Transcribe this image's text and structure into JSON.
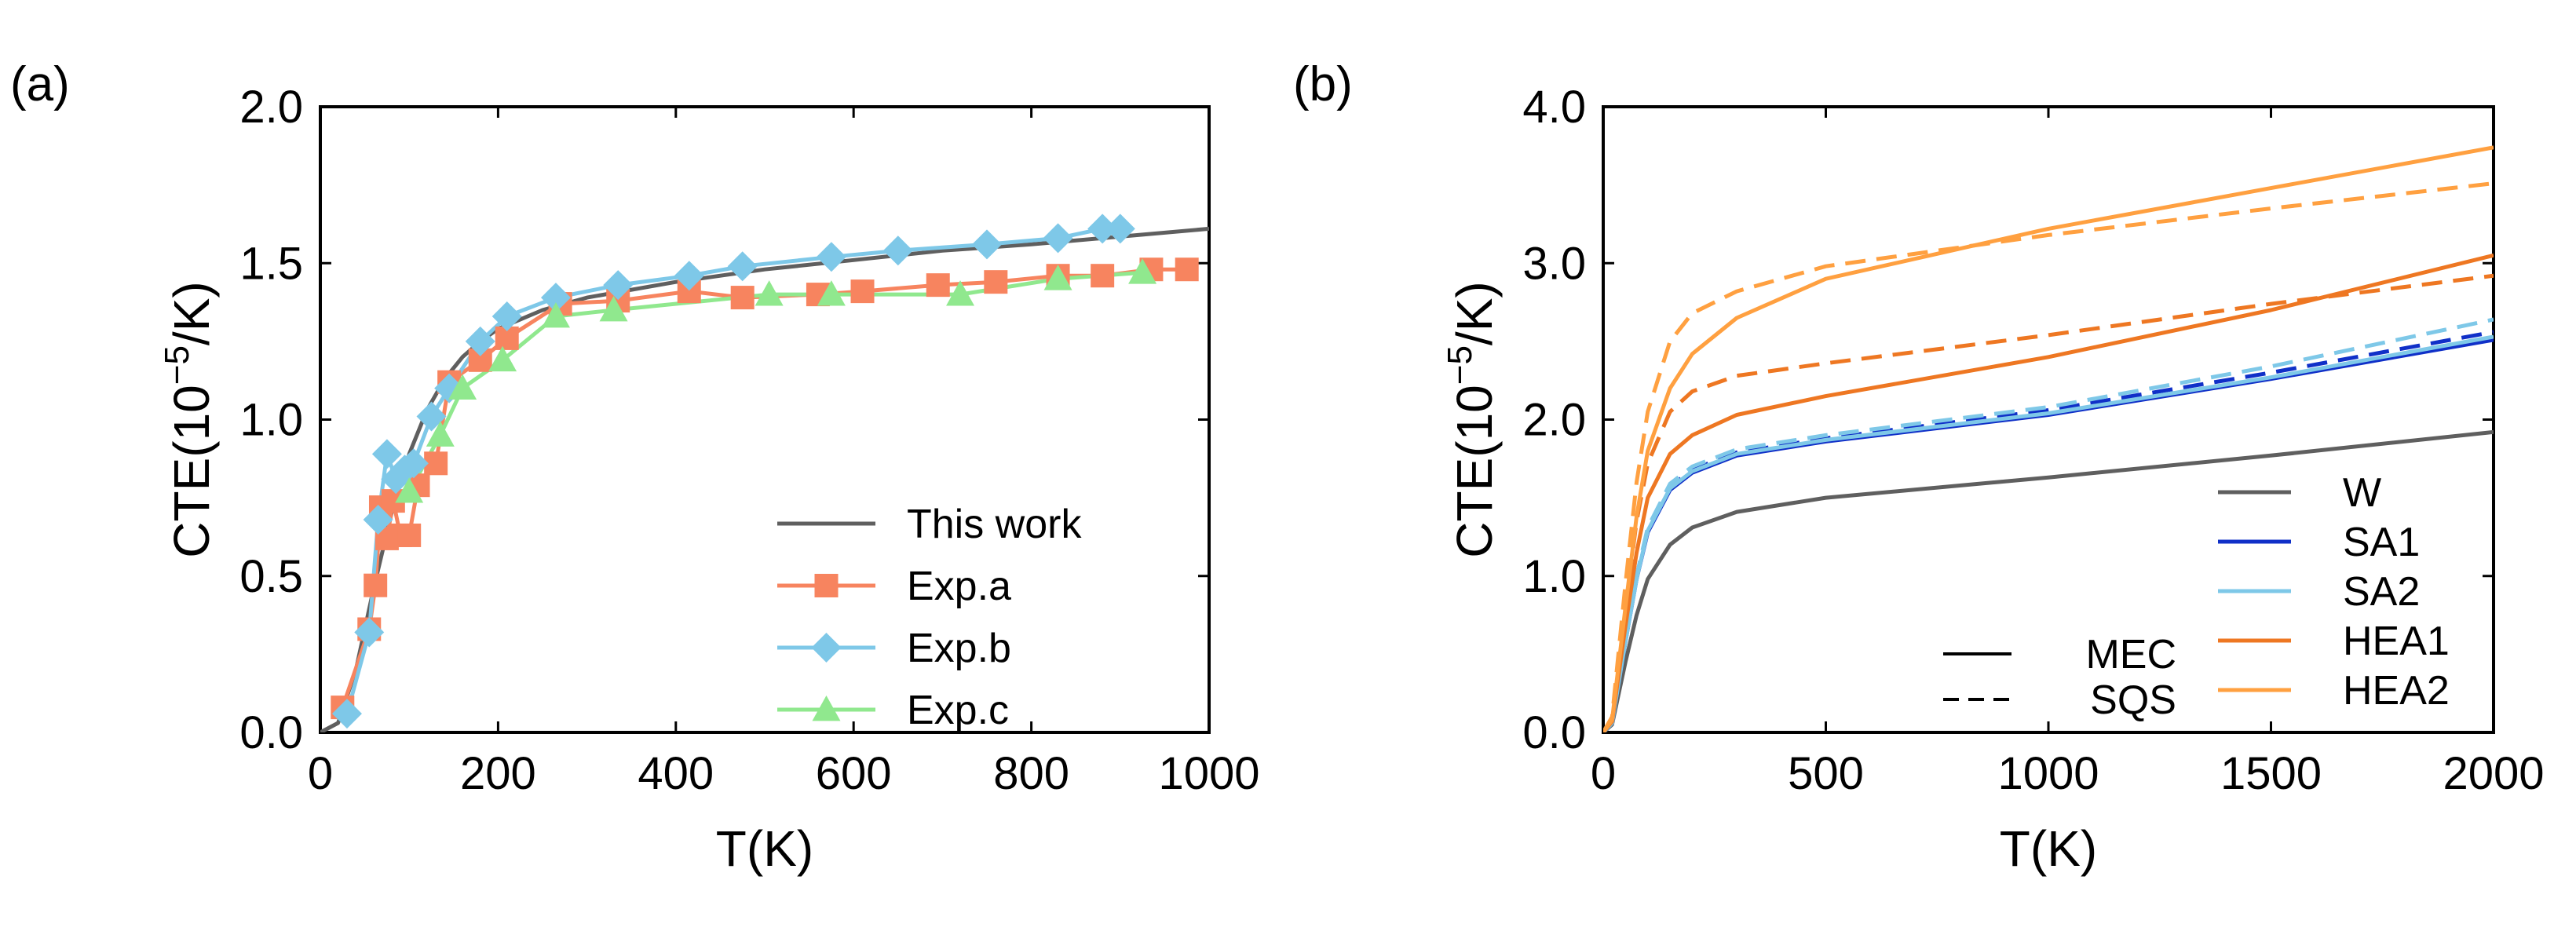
{
  "chart_data": [
    {
      "type": "line",
      "panel_label": "(a)",
      "xlabel": "T(K)",
      "ylabel": {
        "base": "CTE(10",
        "exp": "−5",
        "unit": "/K)"
      },
      "xlim": [
        0,
        1000
      ],
      "ylim": [
        0,
        2
      ],
      "xticks": [
        "0",
        "200",
        "400",
        "600",
        "800",
        "1000"
      ],
      "yticks": [
        "0.0",
        "0.5",
        "1.0",
        "1.5",
        "2.0"
      ],
      "legend_position": "bottom-right",
      "series": [
        {
          "name": "This work",
          "color": "#5f5f5f",
          "dash": "solid",
          "marker": "none",
          "x": [
            0,
            20,
            40,
            60,
            80,
            100,
            120,
            140,
            160,
            180,
            200,
            250,
            300,
            400,
            500,
            600,
            700,
            800,
            900,
            1000
          ],
          "y": [
            0,
            0.03,
            0.2,
            0.46,
            0.7,
            0.89,
            1.03,
            1.13,
            1.2,
            1.25,
            1.29,
            1.35,
            1.39,
            1.44,
            1.48,
            1.51,
            1.54,
            1.56,
            1.585,
            1.61
          ]
        },
        {
          "name": "Exp.a",
          "color": "#f7845f",
          "dash": "solid",
          "marker": "square",
          "x": [
            25,
            55,
            62,
            68,
            75,
            82,
            90,
            100,
            110,
            130,
            145,
            180,
            210,
            270,
            335,
            415,
            475,
            560,
            610,
            695,
            760,
            830,
            880,
            935,
            975
          ],
          "y": [
            0.08,
            0.33,
            0.47,
            0.72,
            0.62,
            0.74,
            0.63,
            0.63,
            0.79,
            0.86,
            1.12,
            1.19,
            1.26,
            1.37,
            1.38,
            1.41,
            1.39,
            1.4,
            1.41,
            1.43,
            1.44,
            1.46,
            1.46,
            1.48,
            1.48
          ]
        },
        {
          "name": "Exp.b",
          "color": "#7ec8e8",
          "dash": "solid",
          "marker": "diamond",
          "x": [
            30,
            55,
            65,
            75,
            85,
            95,
            105,
            125,
            145,
            180,
            210,
            265,
            335,
            415,
            475,
            575,
            650,
            750,
            830,
            880,
            900
          ],
          "y": [
            0.06,
            0.32,
            0.68,
            0.89,
            0.81,
            0.84,
            0.86,
            1.01,
            1.1,
            1.25,
            1.33,
            1.39,
            1.43,
            1.46,
            1.49,
            1.52,
            1.54,
            1.56,
            1.58,
            1.61,
            1.61
          ]
        },
        {
          "name": "Exp.c",
          "color": "#90e88e",
          "dash": "solid",
          "marker": "triangle",
          "x": [
            100,
            135,
            160,
            205,
            265,
            330,
            505,
            575,
            720,
            830,
            925
          ],
          "y": [
            0.77,
            0.95,
            1.1,
            1.19,
            1.33,
            1.35,
            1.4,
            1.4,
            1.4,
            1.45,
            1.47
          ]
        }
      ]
    },
    {
      "type": "line",
      "panel_label": "(b)",
      "xlabel": "T(K)",
      "ylabel": {
        "base": "CTE(10",
        "exp": "−5",
        "unit": "/K)"
      },
      "xlim": [
        0,
        2000
      ],
      "ylim": [
        0,
        4
      ],
      "xticks": [
        "0",
        "500",
        "1000",
        "1500",
        "2000"
      ],
      "yticks": [
        "0.0",
        "1.0",
        "2.0",
        "3.0",
        "4.0"
      ],
      "legend_position": "bottom-right",
      "style_legend": [
        {
          "name": "MEC",
          "dash": "solid"
        },
        {
          "name": "SQS",
          "dash": "dashed"
        }
      ],
      "series": [
        {
          "name": "W",
          "method": "MEC",
          "color": "#5f5f5f",
          "dash": "solid",
          "x": [
            0,
            20,
            50,
            75,
            100,
            150,
            200,
            300,
            500,
            1000,
            1500,
            2000
          ],
          "y": [
            0,
            0.05,
            0.45,
            0.75,
            0.98,
            1.2,
            1.31,
            1.41,
            1.5,
            1.63,
            1.77,
            1.92
          ]
        },
        {
          "name": "SA1",
          "method": "MEC",
          "color": "#1030c8",
          "dash": "solid",
          "x": [
            0,
            20,
            50,
            75,
            100,
            150,
            200,
            300,
            500,
            1000,
            1500,
            2000
          ],
          "y": [
            0,
            0.06,
            0.58,
            0.98,
            1.28,
            1.55,
            1.66,
            1.77,
            1.86,
            2.03,
            2.26,
            2.51
          ]
        },
        {
          "name": "SA1",
          "method": "SQS",
          "color": "#1030c8",
          "dash": "dashed",
          "x": [
            0,
            20,
            50,
            75,
            100,
            150,
            200,
            300,
            500,
            1000,
            1500,
            2000
          ],
          "y": [
            0,
            0.06,
            0.6,
            1.0,
            1.3,
            1.57,
            1.68,
            1.79,
            1.88,
            2.06,
            2.3,
            2.56
          ]
        },
        {
          "name": "SA2",
          "method": "MEC",
          "color": "#7ec8e8",
          "dash": "solid",
          "x": [
            0,
            20,
            50,
            75,
            100,
            150,
            200,
            300,
            500,
            1000,
            1500,
            2000
          ],
          "y": [
            0,
            0.06,
            0.58,
            0.98,
            1.29,
            1.56,
            1.67,
            1.78,
            1.87,
            2.04,
            2.27,
            2.53
          ]
        },
        {
          "name": "SA2",
          "method": "SQS",
          "color": "#7ec8e8",
          "dash": "dashed",
          "x": [
            0,
            20,
            50,
            75,
            100,
            150,
            200,
            300,
            500,
            1000,
            1500,
            2000
          ],
          "y": [
            0,
            0.06,
            0.6,
            1.0,
            1.31,
            1.59,
            1.7,
            1.81,
            1.9,
            2.08,
            2.34,
            2.64
          ]
        },
        {
          "name": "HEA1",
          "method": "MEC",
          "color": "#ee7722",
          "dash": "solid",
          "x": [
            0,
            20,
            50,
            75,
            100,
            150,
            200,
            300,
            500,
            1000,
            1500,
            2000
          ],
          "y": [
            0,
            0.07,
            0.68,
            1.15,
            1.5,
            1.78,
            1.9,
            2.03,
            2.15,
            2.4,
            2.7,
            3.05
          ]
        },
        {
          "name": "HEA1",
          "method": "SQS",
          "color": "#ee7722",
          "dash": "dashed",
          "x": [
            0,
            20,
            50,
            75,
            100,
            150,
            200,
            300,
            500,
            1000,
            1500,
            2000
          ],
          "y": [
            0,
            0.08,
            0.8,
            1.35,
            1.72,
            2.05,
            2.18,
            2.28,
            2.36,
            2.54,
            2.74,
            2.92
          ]
        },
        {
          "name": "HEA2",
          "method": "MEC",
          "color": "#ffa040",
          "dash": "solid",
          "x": [
            0,
            20,
            50,
            75,
            100,
            150,
            200,
            300,
            500,
            1000,
            1500,
            2000
          ],
          "y": [
            0,
            0.08,
            0.8,
            1.38,
            1.8,
            2.2,
            2.42,
            2.65,
            2.9,
            3.22,
            3.48,
            3.74
          ]
        },
        {
          "name": "HEA2",
          "method": "SQS",
          "color": "#ffa040",
          "dash": "dashed",
          "x": [
            0,
            20,
            50,
            75,
            100,
            150,
            200,
            300,
            500,
            1000,
            1500,
            2000
          ],
          "y": [
            0,
            0.1,
            0.95,
            1.6,
            2.05,
            2.5,
            2.68,
            2.82,
            2.98,
            3.18,
            3.35,
            3.51
          ]
        }
      ],
      "color_legend": [
        {
          "name": "W",
          "color": "#5f5f5f"
        },
        {
          "name": "SA1",
          "color": "#1030c8"
        },
        {
          "name": "SA2",
          "color": "#7ec8e8"
        },
        {
          "name": "HEA1",
          "color": "#ee7722"
        },
        {
          "name": "HEA2",
          "color": "#ffa040"
        }
      ]
    }
  ]
}
